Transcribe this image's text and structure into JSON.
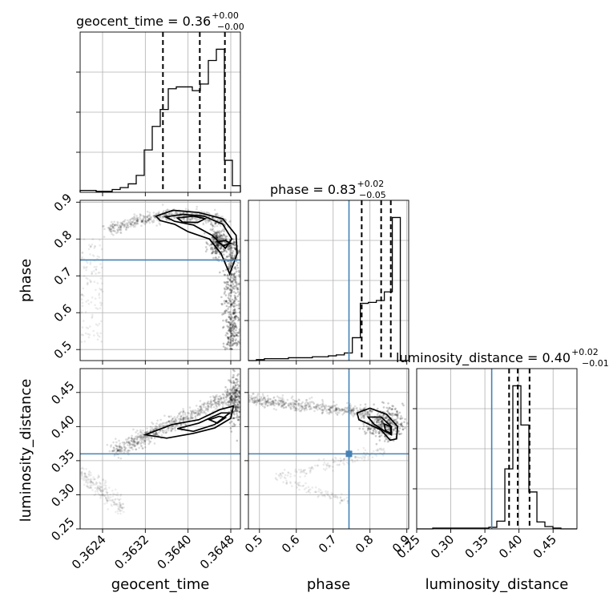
{
  "chart_data": {
    "type": "corner",
    "parameters": [
      "geocent_time",
      "phase",
      "luminosity_distance"
    ],
    "ranges": {
      "geocent_time": [
        0.36198,
        0.36498
      ],
      "phase": [
        0.47,
        0.905
      ],
      "luminosity_distance": [
        0.25,
        0.485
      ]
    },
    "truths": {
      "phase": 0.743,
      "luminosity_distance": 0.36
    },
    "titles": [
      {
        "text": "geocent_time = 0.36",
        "sup": "+0.00",
        "sub": "−0.00"
      },
      {
        "text": "phase = 0.83",
        "sup": "+0.02",
        "sub": "−0.05"
      },
      {
        "text": "luminosity_distance = 0.40",
        "sup": "+0.02",
        "sub": "−0.01"
      }
    ],
    "axis_labels": {
      "x": [
        "geocent_time",
        "phase",
        "luminosity_distance"
      ],
      "y": [
        "phase",
        "luminosity_distance"
      ]
    },
    "ticks": {
      "geocent_time": {
        "values": [
          0.3624,
          0.3632,
          0.364,
          0.3648
        ],
        "labels": [
          "0.3624",
          "0.3632",
          "0.3640",
          "0.3648"
        ]
      },
      "phase_x": {
        "values": [
          0.5,
          0.6,
          0.7,
          0.8,
          0.9
        ],
        "labels": [
          "0.5",
          "0.6",
          "0.7",
          "0.8",
          "0.9"
        ]
      },
      "phase_y": {
        "values": [
          0.5,
          0.6,
          0.7,
          0.8,
          0.9
        ],
        "labels": [
          "0.5",
          "0.6",
          "0.7",
          "0.8",
          "0.9"
        ]
      },
      "lumdist_x": {
        "values": [
          0.25,
          0.3,
          0.35,
          0.4,
          0.45
        ],
        "labels": [
          "0.25",
          "0.30",
          "0.35",
          "0.40",
          "0.45"
        ]
      },
      "lumdist_y": {
        "values": [
          0.25,
          0.3,
          0.35,
          0.4,
          0.45
        ],
        "labels": [
          "0.25",
          "0.30",
          "0.35",
          "0.40",
          "0.45"
        ]
      }
    },
    "histograms": {
      "geocent_time": {
        "edges": [
          0.36198,
          0.36213,
          0.36228,
          0.36243,
          0.36258,
          0.36273,
          0.36288,
          0.36303,
          0.36318,
          0.36333,
          0.36348,
          0.36363,
          0.36378,
          0.36393,
          0.36408,
          0.36423,
          0.36438,
          0.36453,
          0.36468,
          0.36483,
          0.36498
        ],
        "counts": [
          2,
          2,
          1,
          1,
          3,
          5,
          9,
          18,
          45,
          70,
          88,
          110,
          112,
          112,
          108,
          115,
          140,
          152,
          34,
          7
        ],
        "quantiles": [
          0.36353,
          0.36422,
          0.36469
        ]
      },
      "phase": {
        "edges": [
          0.47,
          0.4917,
          0.5134,
          0.5351,
          0.5568,
          0.5785,
          0.6002,
          0.6219,
          0.6436,
          0.6653,
          0.687,
          0.7087,
          0.7304,
          0.7521,
          0.7738,
          0.7955,
          0.8172,
          0.8389,
          0.8606,
          0.8823,
          0.905
        ],
        "counts": [
          0,
          1,
          2,
          2,
          2,
          3,
          3,
          3,
          4,
          4,
          5,
          6,
          8,
          24,
          60,
          61,
          63,
          72,
          150,
          0
        ],
        "quantiles": [
          0.7775,
          0.8303,
          0.8565
        ]
      },
      "luminosity_distance": {
        "edges": [
          0.25,
          0.2618,
          0.2735,
          0.2853,
          0.297,
          0.3088,
          0.3205,
          0.3323,
          0.344,
          0.3558,
          0.3675,
          0.3793,
          0.391,
          0.4028,
          0.4145,
          0.4263,
          0.438,
          0.4498,
          0.4615,
          0.4733,
          0.485
        ],
        "counts": [
          0,
          0,
          1,
          1,
          1,
          1,
          1,
          1,
          1,
          2,
          10,
          78,
          186,
          135,
          48,
          9,
          3,
          1,
          0,
          0
        ],
        "quantiles": [
          0.3855,
          0.3982,
          0.4155
        ]
      }
    }
  }
}
